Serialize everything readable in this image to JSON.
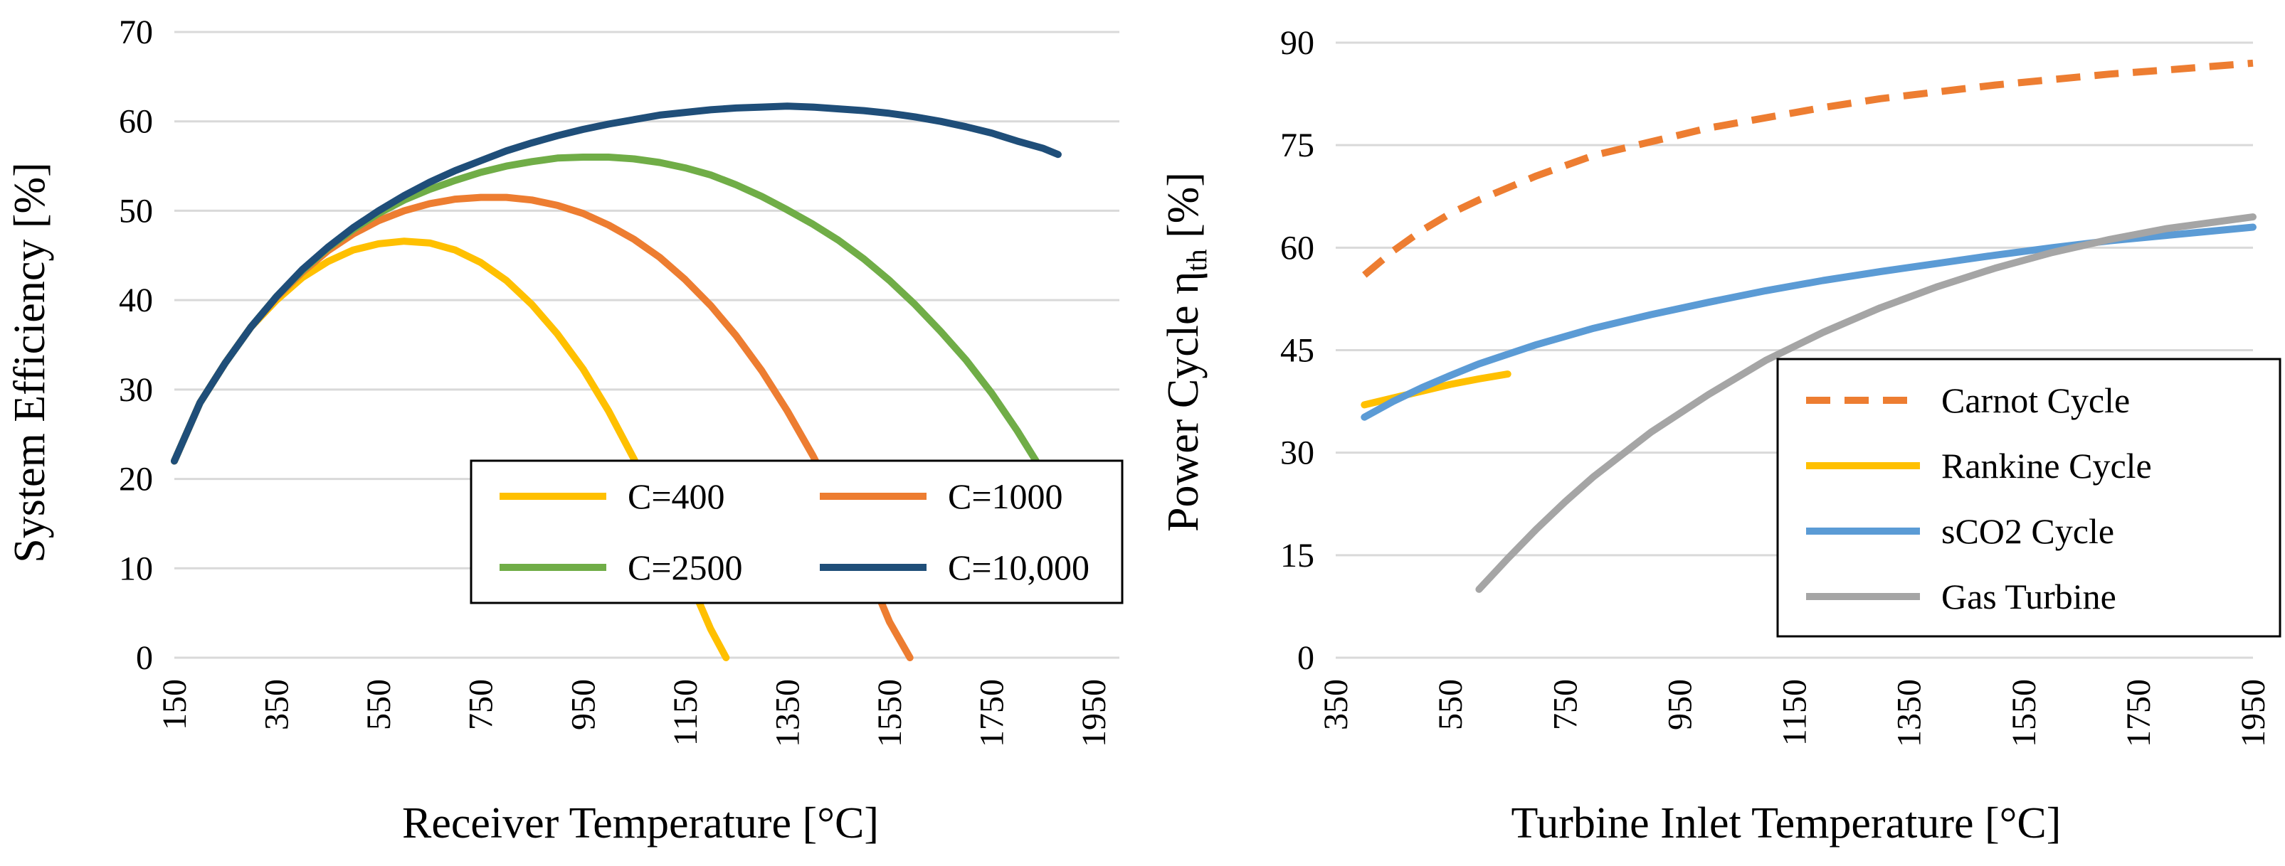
{
  "chart_data": [
    {
      "type": "line",
      "title": "",
      "xlabel": "Receiver Temperature [°C]",
      "ylabel": "System Efficiency [%]",
      "xlim": [
        150,
        2000
      ],
      "ylim": [
        0,
        70
      ],
      "x_ticks": [
        "150",
        "350",
        "550",
        "750",
        "950",
        "1150",
        "1350",
        "1550",
        "1750",
        "1950"
      ],
      "y_ticks": [
        "0",
        "10",
        "20",
        "30",
        "40",
        "50",
        "60",
        "70"
      ],
      "grid": true,
      "legend_position": "bottom-right, inside plot, two columns",
      "series": [
        {
          "name": "C=400",
          "color": "#FFC000",
          "dash": "solid",
          "points": [
            [
              150,
              22
            ],
            [
              200,
              28.5
            ],
            [
              250,
              33
            ],
            [
              300,
              37
            ],
            [
              350,
              40
            ],
            [
              400,
              42.5
            ],
            [
              450,
              44.3
            ],
            [
              500,
              45.6
            ],
            [
              550,
              46.3
            ],
            [
              600,
              46.6
            ],
            [
              650,
              46.4
            ],
            [
              700,
              45.6
            ],
            [
              750,
              44.2
            ],
            [
              800,
              42.2
            ],
            [
              850,
              39.5
            ],
            [
              900,
              36.2
            ],
            [
              950,
              32.3
            ],
            [
              1000,
              27.6
            ],
            [
              1050,
              22.2
            ],
            [
              1100,
              16.2
            ],
            [
              1150,
              9.8
            ],
            [
              1200,
              3.2
            ],
            [
              1230,
              0
            ]
          ]
        },
        {
          "name": "C=1000",
          "color": "#ED7D31",
          "dash": "solid",
          "points": [
            [
              150,
              22
            ],
            [
              200,
              28.5
            ],
            [
              250,
              33
            ],
            [
              300,
              37
            ],
            [
              350,
              40.3
            ],
            [
              400,
              43.1
            ],
            [
              450,
              45.5
            ],
            [
              500,
              47.4
            ],
            [
              550,
              48.9
            ],
            [
              600,
              50
            ],
            [
              650,
              50.8
            ],
            [
              700,
              51.3
            ],
            [
              750,
              51.5
            ],
            [
              800,
              51.5
            ],
            [
              850,
              51.2
            ],
            [
              900,
              50.6
            ],
            [
              950,
              49.7
            ],
            [
              1000,
              48.4
            ],
            [
              1050,
              46.8
            ],
            [
              1100,
              44.8
            ],
            [
              1150,
              42.3
            ],
            [
              1200,
              39.4
            ],
            [
              1250,
              36
            ],
            [
              1300,
              32.1
            ],
            [
              1350,
              27.6
            ],
            [
              1400,
              22.6
            ],
            [
              1450,
              17
            ],
            [
              1500,
              10.8
            ],
            [
              1550,
              4
            ],
            [
              1590,
              0
            ]
          ]
        },
        {
          "name": "C=2500",
          "color": "#70AD47",
          "dash": "solid",
          "points": [
            [
              150,
              22
            ],
            [
              200,
              28.5
            ],
            [
              250,
              33
            ],
            [
              300,
              37
            ],
            [
              350,
              40.4
            ],
            [
              400,
              43.3
            ],
            [
              450,
              45.8
            ],
            [
              500,
              47.9
            ],
            [
              550,
              49.7
            ],
            [
              600,
              51.2
            ],
            [
              650,
              52.4
            ],
            [
              700,
              53.4
            ],
            [
              750,
              54.3
            ],
            [
              800,
              55
            ],
            [
              850,
              55.5
            ],
            [
              900,
              55.9
            ],
            [
              950,
              56
            ],
            [
              1000,
              56
            ],
            [
              1050,
              55.8
            ],
            [
              1100,
              55.4
            ],
            [
              1150,
              54.8
            ],
            [
              1200,
              54
            ],
            [
              1250,
              52.9
            ],
            [
              1300,
              51.6
            ],
            [
              1350,
              50.1
            ],
            [
              1400,
              48.5
            ],
            [
              1450,
              46.7
            ],
            [
              1500,
              44.6
            ],
            [
              1550,
              42.2
            ],
            [
              1600,
              39.5
            ],
            [
              1650,
              36.5
            ],
            [
              1700,
              33.3
            ],
            [
              1750,
              29.6
            ],
            [
              1800,
              25.4
            ],
            [
              1850,
              20.8
            ],
            [
              1880,
              18
            ]
          ]
        },
        {
          "name": "C=10,000",
          "color": "#1F4E79",
          "dash": "solid",
          "points": [
            [
              150,
              22
            ],
            [
              200,
              28.5
            ],
            [
              250,
              33
            ],
            [
              300,
              37
            ],
            [
              350,
              40.4
            ],
            [
              400,
              43.4
            ],
            [
              450,
              45.9
            ],
            [
              500,
              48.1
            ],
            [
              550,
              50
            ],
            [
              600,
              51.7
            ],
            [
              650,
              53.2
            ],
            [
              700,
              54.5
            ],
            [
              750,
              55.6
            ],
            [
              800,
              56.7
            ],
            [
              850,
              57.6
            ],
            [
              900,
              58.4
            ],
            [
              950,
              59.1
            ],
            [
              1000,
              59.7
            ],
            [
              1050,
              60.2
            ],
            [
              1100,
              60.7
            ],
            [
              1150,
              61
            ],
            [
              1200,
              61.3
            ],
            [
              1250,
              61.5
            ],
            [
              1300,
              61.6
            ],
            [
              1350,
              61.7
            ],
            [
              1400,
              61.6
            ],
            [
              1450,
              61.4
            ],
            [
              1500,
              61.2
            ],
            [
              1550,
              60.9
            ],
            [
              1600,
              60.5
            ],
            [
              1650,
              60
            ],
            [
              1700,
              59.4
            ],
            [
              1750,
              58.7
            ],
            [
              1800,
              57.8
            ],
            [
              1850,
              57
            ],
            [
              1880,
              56.3
            ]
          ]
        }
      ]
    },
    {
      "type": "line",
      "title": "",
      "xlabel": "Turbine Inlet Temperature [°C]",
      "ylabel_main": "Power Cycle ",
      "ylabel_eta": "η",
      "ylabel_sub": "th",
      "ylabel_unit": " [%]",
      "xlim": [
        350,
        1950
      ],
      "ylim": [
        0,
        90
      ],
      "x_ticks": [
        "350",
        "550",
        "750",
        "950",
        "1150",
        "1350",
        "1550",
        "1750",
        "1950"
      ],
      "y_ticks": [
        "0",
        "15",
        "30",
        "45",
        "60",
        "75",
        "90"
      ],
      "grid": true,
      "legend_position": "bottom-right, inside plot",
      "series": [
        {
          "name": "Carnot Cycle",
          "color": "#ED7D31",
          "dash": "dashed",
          "points": [
            [
              400,
              56
            ],
            [
              450,
              59.5
            ],
            [
              500,
              62.5
            ],
            [
              550,
              65
            ],
            [
              600,
              67
            ],
            [
              700,
              70.5
            ],
            [
              800,
              73.5
            ],
            [
              900,
              75.5
            ],
            [
              1000,
              77.5
            ],
            [
              1100,
              79
            ],
            [
              1200,
              80.5
            ],
            [
              1300,
              81.8
            ],
            [
              1400,
              82.8
            ],
            [
              1500,
              83.8
            ],
            [
              1600,
              84.6
            ],
            [
              1700,
              85.4
            ],
            [
              1800,
              86
            ],
            [
              1950,
              87
            ]
          ]
        },
        {
          "name": "Rankine Cycle",
          "color": "#FFC000",
          "dash": "solid",
          "points": [
            [
              400,
              37
            ],
            [
              450,
              38
            ],
            [
              500,
              39
            ],
            [
              550,
              40
            ],
            [
              600,
              40.8
            ],
            [
              650,
              41.5
            ]
          ]
        },
        {
          "name": "sCO2 Cycle",
          "color": "#5B9BD5",
          "dash": "solid",
          "points": [
            [
              400,
              35.2
            ],
            [
              450,
              37.5
            ],
            [
              500,
              39.5
            ],
            [
              550,
              41.3
            ],
            [
              600,
              43
            ],
            [
              700,
              45.8
            ],
            [
              800,
              48.2
            ],
            [
              900,
              50.2
            ],
            [
              1000,
              52
            ],
            [
              1100,
              53.7
            ],
            [
              1200,
              55.2
            ],
            [
              1300,
              56.5
            ],
            [
              1400,
              57.7
            ],
            [
              1500,
              58.9
            ],
            [
              1600,
              60
            ],
            [
              1700,
              61
            ],
            [
              1800,
              61.8
            ],
            [
              1950,
              63
            ]
          ]
        },
        {
          "name": "Gas Turbine",
          "color": "#A5A5A5",
          "dash": "solid",
          "points": [
            [
              600,
              10
            ],
            [
              650,
              14.5
            ],
            [
              700,
              18.8
            ],
            [
              750,
              22.8
            ],
            [
              800,
              26.5
            ],
            [
              900,
              33
            ],
            [
              1000,
              38.5
            ],
            [
              1100,
              43.5
            ],
            [
              1200,
              47.6
            ],
            [
              1300,
              51.2
            ],
            [
              1400,
              54.3
            ],
            [
              1500,
              57
            ],
            [
              1600,
              59.3
            ],
            [
              1700,
              61.2
            ],
            [
              1800,
              62.8
            ],
            [
              1950,
              64.5
            ]
          ]
        }
      ]
    }
  ]
}
